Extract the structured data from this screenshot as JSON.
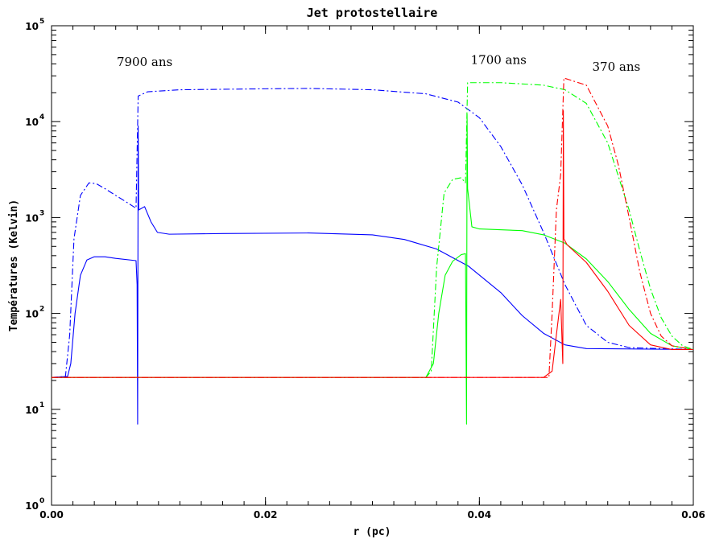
{
  "chart_data": {
    "type": "line",
    "title": "Jet protostellaire",
    "xlabel": "r (pc)",
    "ylabel": "Températures (Kelvin)",
    "xlim": [
      0.0,
      0.06
    ],
    "ylim": [
      1,
      100000
    ],
    "yscale": "log",
    "x_ticks": [
      {
        "value": 0.0,
        "label": "0.00"
      },
      {
        "value": 0.02,
        "label": "0.02"
      },
      {
        "value": 0.04,
        "label": "0.04"
      },
      {
        "value": 0.06,
        "label": "0.06"
      }
    ],
    "y_ticks": [
      {
        "value": 1,
        "base": "10",
        "exp": "0"
      },
      {
        "value": 10,
        "base": "10",
        "exp": "1"
      },
      {
        "value": 100,
        "base": "10",
        "exp": "2"
      },
      {
        "value": 1000,
        "base": "10",
        "exp": "3"
      },
      {
        "value": 10000,
        "base": "10",
        "exp": "4"
      },
      {
        "value": 100000,
        "base": "10",
        "exp": "5"
      }
    ],
    "annotations": [
      {
        "text": "7900 ans",
        "x": 0.0087,
        "y": 38000
      },
      {
        "text": "1700 ans",
        "x": 0.0418,
        "y": 40000
      },
      {
        "text": "370 ans",
        "x": 0.0528,
        "y": 34000
      }
    ],
    "series": [
      {
        "color": "#0000ff",
        "dash": "solid",
        "points": [
          [
            0,
            21.5
          ],
          [
            0.0015,
            22
          ],
          [
            0.0018,
            30
          ],
          [
            0.0022,
            100
          ],
          [
            0.0027,
            250
          ],
          [
            0.0033,
            360
          ],
          [
            0.004,
            390
          ],
          [
            0.005,
            390
          ],
          [
            0.006,
            375
          ],
          [
            0.0079,
            355
          ],
          [
            0.008,
            200
          ],
          [
            0.00805,
            7
          ],
          [
            0.0081,
            9000
          ],
          [
            0.00815,
            1200
          ],
          [
            0.0087,
            1300
          ],
          [
            0.0093,
            900
          ],
          [
            0.0099,
            700
          ],
          [
            0.011,
            670
          ],
          [
            0.016,
            680
          ],
          [
            0.024,
            690
          ],
          [
            0.03,
            660
          ],
          [
            0.033,
            590
          ],
          [
            0.036,
            470
          ],
          [
            0.039,
            310
          ],
          [
            0.042,
            165
          ],
          [
            0.044,
            95
          ],
          [
            0.046,
            62
          ],
          [
            0.048,
            47
          ],
          [
            0.05,
            43
          ],
          [
            0.06,
            42
          ]
        ]
      },
      {
        "color": "#0000ff",
        "dash": "dashdot",
        "points": [
          [
            0,
            21.5
          ],
          [
            0.0013,
            22
          ],
          [
            0.0017,
            60
          ],
          [
            0.0021,
            600
          ],
          [
            0.0027,
            1700
          ],
          [
            0.0035,
            2300
          ],
          [
            0.0042,
            2250
          ],
          [
            0.005,
            2000
          ],
          [
            0.006,
            1700
          ],
          [
            0.007,
            1450
          ],
          [
            0.0079,
            1250
          ],
          [
            0.0081,
            18500
          ],
          [
            0.009,
            20500
          ],
          [
            0.012,
            21500
          ],
          [
            0.02,
            22000
          ],
          [
            0.024,
            22200
          ],
          [
            0.03,
            21500
          ],
          [
            0.035,
            19500
          ],
          [
            0.038,
            16000
          ],
          [
            0.04,
            11000
          ],
          [
            0.042,
            5500
          ],
          [
            0.044,
            2200
          ],
          [
            0.046,
            700
          ],
          [
            0.048,
            200
          ],
          [
            0.05,
            75
          ],
          [
            0.052,
            50
          ],
          [
            0.054,
            44
          ],
          [
            0.06,
            42
          ]
        ]
      },
      {
        "color": "#00ff00",
        "dash": "solid",
        "points": [
          [
            0,
            21.5
          ],
          [
            0.035,
            21.5
          ],
          [
            0.0357,
            30
          ],
          [
            0.0362,
            100
          ],
          [
            0.0368,
            250
          ],
          [
            0.0375,
            350
          ],
          [
            0.0383,
            410
          ],
          [
            0.0387,
            420
          ],
          [
            0.0388,
            7
          ],
          [
            0.03885,
            12000
          ],
          [
            0.0389,
            2000
          ],
          [
            0.0393,
            800
          ],
          [
            0.04,
            760
          ],
          [
            0.044,
            730
          ],
          [
            0.046,
            660
          ],
          [
            0.048,
            540
          ],
          [
            0.05,
            370
          ],
          [
            0.052,
            215
          ],
          [
            0.054,
            110
          ],
          [
            0.056,
            62
          ],
          [
            0.058,
            46
          ],
          [
            0.06,
            42
          ]
        ]
      },
      {
        "color": "#00ff00",
        "dash": "dashdot",
        "points": [
          [
            0,
            21.5
          ],
          [
            0.035,
            21.5
          ],
          [
            0.0355,
            25
          ],
          [
            0.036,
            300
          ],
          [
            0.0367,
            1800
          ],
          [
            0.0375,
            2500
          ],
          [
            0.0383,
            2600
          ],
          [
            0.0387,
            2300
          ],
          [
            0.0389,
            25500
          ],
          [
            0.042,
            25500
          ],
          [
            0.046,
            24000
          ],
          [
            0.048,
            21500
          ],
          [
            0.05,
            15500
          ],
          [
            0.052,
            6000
          ],
          [
            0.054,
            1200
          ],
          [
            0.055,
            450
          ],
          [
            0.056,
            180
          ],
          [
            0.057,
            90
          ],
          [
            0.058,
            58
          ],
          [
            0.059,
            46
          ],
          [
            0.06,
            42
          ]
        ]
      },
      {
        "color": "#ff0000",
        "dash": "solid",
        "points": [
          [
            0,
            21.5
          ],
          [
            0.046,
            21.5
          ],
          [
            0.0468,
            25
          ],
          [
            0.0472,
            60
          ],
          [
            0.0476,
            140
          ],
          [
            0.0478,
            30
          ],
          [
            0.04785,
            13000
          ],
          [
            0.0479,
            600
          ],
          [
            0.0482,
            520
          ],
          [
            0.05,
            340
          ],
          [
            0.052,
            170
          ],
          [
            0.054,
            75
          ],
          [
            0.056,
            47
          ],
          [
            0.058,
            42
          ],
          [
            0.06,
            42
          ]
        ]
      },
      {
        "color": "#ff0000",
        "dash": "dashdot",
        "points": [
          [
            0,
            21.5
          ],
          [
            0.0465,
            21.5
          ],
          [
            0.0468,
            100
          ],
          [
            0.0472,
            1200
          ],
          [
            0.0476,
            2800
          ],
          [
            0.0479,
            28500
          ],
          [
            0.05,
            24000
          ],
          [
            0.052,
            9000
          ],
          [
            0.053,
            3500
          ],
          [
            0.054,
            1000
          ],
          [
            0.055,
            270
          ],
          [
            0.056,
            100
          ],
          [
            0.057,
            58
          ],
          [
            0.058,
            46
          ],
          [
            0.06,
            42
          ]
        ]
      }
    ]
  }
}
